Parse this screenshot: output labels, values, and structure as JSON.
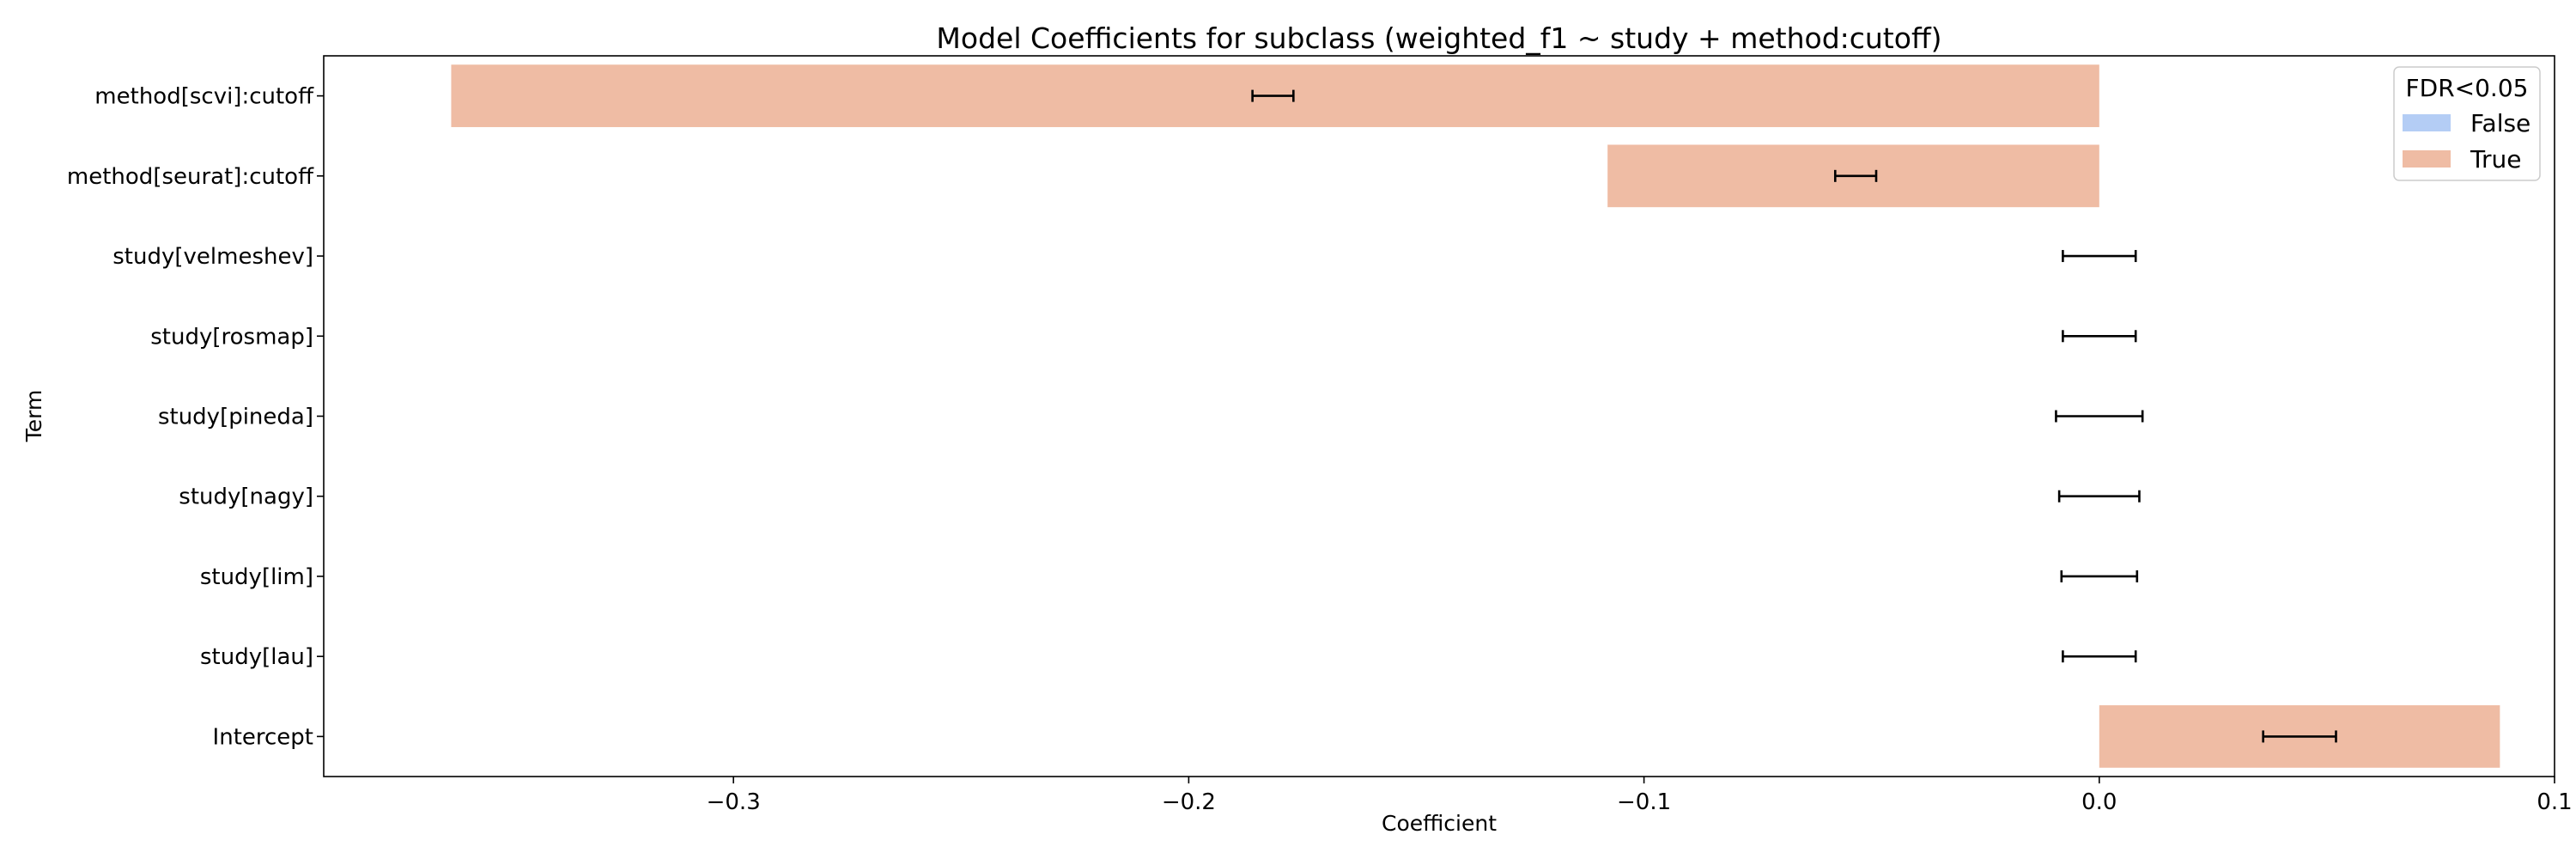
{
  "chart_data": {
    "type": "bar",
    "orientation": "horizontal",
    "title": "Model Coefficients for subclass (weighted_f1 ~  study + method:cutoff)",
    "xlabel": "Coefficient",
    "ylabel": "Term",
    "xlim": [
      -0.39,
      0.1
    ],
    "xticks": [
      -0.3,
      -0.2,
      -0.1,
      0.0,
      0.1
    ],
    "xtick_labels": [
      "−0.3",
      "−0.2",
      "−0.1",
      "0.0",
      "0.1"
    ],
    "grid": false,
    "categories": [
      "method[scvi]:cutoff",
      "method[seurat]:cutoff",
      "study[velmeshev]",
      "study[rosmap]",
      "study[pineda]",
      "study[nagy]",
      "study[lim]",
      "study[lau]",
      "Intercept"
    ],
    "values": [
      -0.362,
      -0.108,
      0.0,
      0.0,
      0.0,
      0.0,
      0.0,
      0.0,
      0.088
    ],
    "fdr_significant": [
      true,
      true,
      false,
      false,
      false,
      false,
      false,
      false,
      true
    ],
    "error_bars": [
      {
        "center": -0.181,
        "low": -0.186,
        "high": -0.177
      },
      {
        "center": -0.054,
        "low": -0.058,
        "high": -0.049
      },
      {
        "center": 0.0,
        "low": -0.008,
        "high": 0.008
      },
      {
        "center": 0.0,
        "low": -0.008,
        "high": 0.008
      },
      {
        "center": 0.0,
        "low": -0.0095,
        "high": 0.0095
      },
      {
        "center": 0.0,
        "low": -0.0088,
        "high": 0.0088
      },
      {
        "center": 0.0,
        "low": -0.0083,
        "high": 0.0083
      },
      {
        "center": 0.0,
        "low": -0.008,
        "high": 0.008
      },
      {
        "center": 0.044,
        "low": 0.036,
        "high": 0.052
      }
    ],
    "legend": {
      "title": "FDR<0.05",
      "placement": "top-right",
      "entries": [
        {
          "label": "False",
          "color": "#b4cdf5"
        },
        {
          "label": "True",
          "color": "#efbca4"
        }
      ]
    },
    "colors": {
      "false": "#b4cdf5",
      "true": "#efbca4"
    }
  }
}
